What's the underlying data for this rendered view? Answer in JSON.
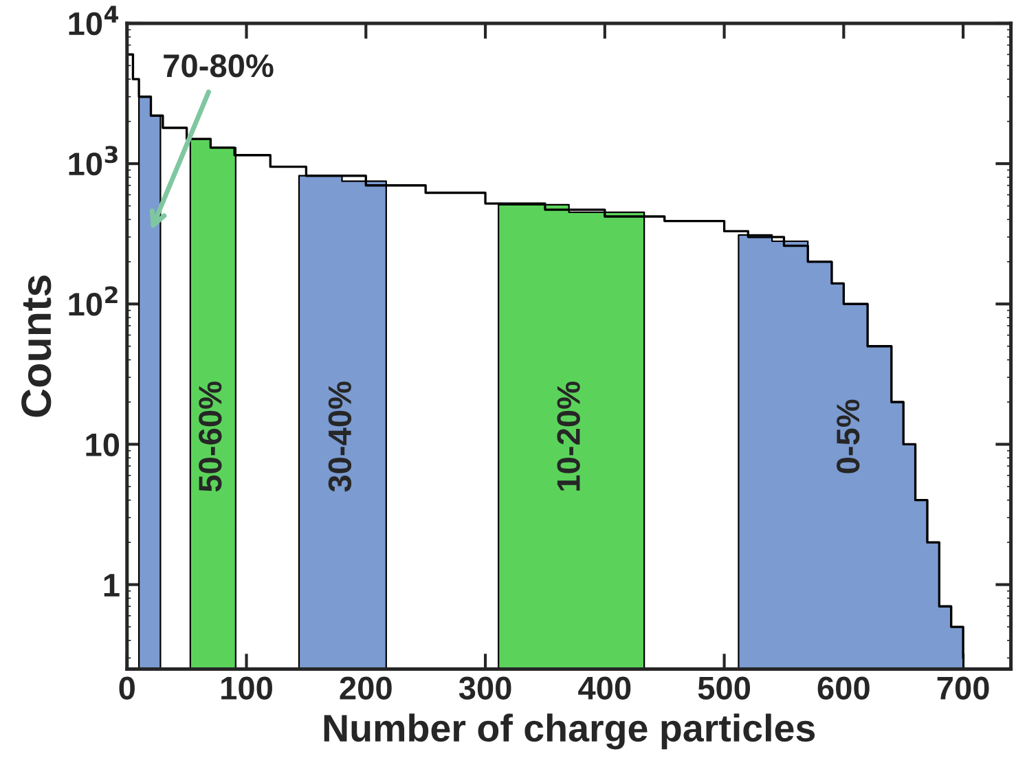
{
  "chart_data": {
    "type": "step",
    "xlabel": "Number of charge particles",
    "ylabel": "Counts",
    "log": "y",
    "xlim": [
      0,
      740
    ],
    "ylim": [
      0.25,
      10000
    ],
    "xticks": [
      0,
      100,
      200,
      300,
      400,
      500,
      600,
      700
    ],
    "yticks": [
      1,
      10,
      {
        "value": 100,
        "label": "10$^{2}$"
      },
      {
        "value": 1000,
        "label": "10$^{3}$"
      },
      {
        "value": 10000,
        "label": "10$^{4}$"
      }
    ],
    "legend": false,
    "grid": false,
    "series": [
      {
        "type": "area",
        "name": "70-80%",
        "color": "#7b9bd1",
        "x": [
          10,
          20,
          28
        ],
        "values": [
          3000,
          2200,
          1900
        ]
      },
      {
        "type": "area",
        "name": "50-60%",
        "color": "#5bd35b",
        "x": [
          53,
          70,
          91
        ],
        "values": [
          1500,
          1300,
          1150
        ]
      },
      {
        "type": "area",
        "name": "30-40%",
        "color": "#7b9bd1",
        "x": [
          144,
          180,
          217
        ],
        "values": [
          820,
          750,
          680
        ]
      },
      {
        "type": "area",
        "name": "10-20%",
        "color": "#5bd35b",
        "x": [
          311,
          370,
          433
        ],
        "values": [
          510,
          450,
          400
        ]
      },
      {
        "type": "area",
        "name": "0-5%",
        "color": "#7b9bd1",
        "x": [
          512,
          540,
          570,
          590,
          600,
          620,
          640,
          650,
          660,
          670,
          680,
          690,
          700
        ],
        "values": [
          310,
          280,
          200,
          140,
          100,
          50,
          20,
          10,
          4,
          2,
          0.7,
          0.5,
          0.3
        ]
      },
      {
        "color": "#000000",
        "x": [
          0,
          5,
          10,
          20,
          30,
          50,
          70,
          90,
          120,
          150,
          200,
          250,
          300,
          350,
          400,
          450,
          500,
          520,
          550,
          570,
          590,
          600,
          620,
          640,
          650,
          660,
          670,
          680,
          690,
          700
        ],
        "values": [
          6000,
          4000,
          3000,
          2200,
          1800,
          1500,
          1300,
          1150,
          950,
          820,
          700,
          620,
          520,
          470,
          420,
          390,
          330,
          300,
          260,
          200,
          140,
          100,
          50,
          20,
          10,
          4,
          2,
          0.7,
          0.5,
          0.3
        ]
      }
    ]
  }
}
